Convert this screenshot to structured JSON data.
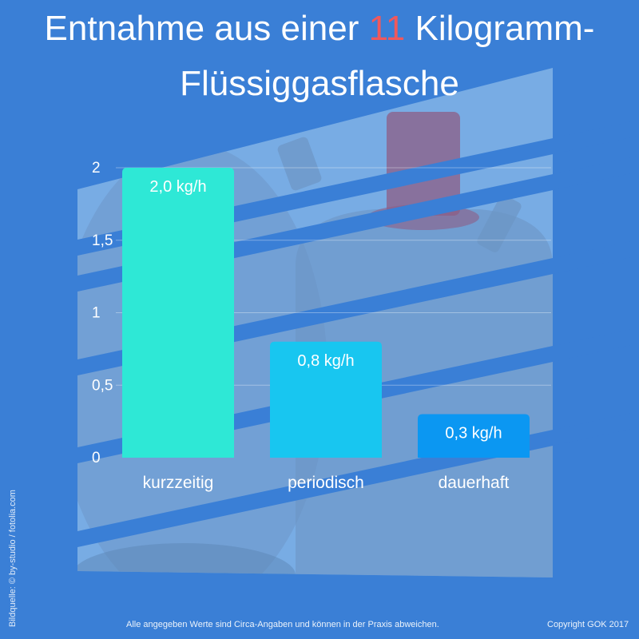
{
  "header": {
    "title_prefix": "Entnahme aus einer ",
    "title_highlight": "11",
    "title_suffix": " Kilogramm-",
    "title_line2": "Flüssiggasflasche"
  },
  "chart_data": {
    "type": "bar",
    "categories": [
      "kurzzeitig",
      "periodisch",
      "dauerhaft"
    ],
    "values": [
      2.0,
      0.8,
      0.3
    ],
    "data_labels": [
      "2,0 kg/h",
      "0,8 kg/h",
      "0,3 kg/h"
    ],
    "y_ticks": [
      0,
      0.5,
      1,
      1.5,
      2
    ],
    "y_tick_labels": [
      "0",
      "0,5",
      "1",
      "1,5",
      "2"
    ],
    "ylim": [
      0,
      2
    ],
    "grid": true,
    "bar_colors": [
      "#2ee8d6",
      "#18c6f0",
      "#0b97f2"
    ]
  },
  "footer": {
    "note": "Alle angegeben Werte sind Circa-Angaben und können in der Praxis abweichen.",
    "copyright": "Copyright GOK 2017",
    "image_credit": "Bildquelle: © by-studio / fotolia.com"
  },
  "colors": {
    "background": "#3a7fd6",
    "title_highlight": "#f0585c"
  }
}
